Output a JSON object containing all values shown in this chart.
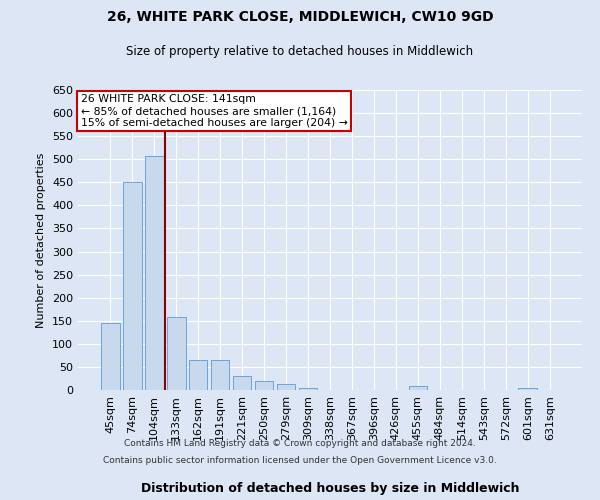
{
  "title": "26, WHITE PARK CLOSE, MIDDLEWICH, CW10 9GD",
  "subtitle": "Size of property relative to detached houses in Middlewich",
  "xlabel": "Distribution of detached houses by size in Middlewich",
  "ylabel": "Number of detached properties",
  "categories": [
    "45sqm",
    "74sqm",
    "104sqm",
    "133sqm",
    "162sqm",
    "191sqm",
    "221sqm",
    "250sqm",
    "279sqm",
    "309sqm",
    "338sqm",
    "367sqm",
    "396sqm",
    "426sqm",
    "455sqm",
    "484sqm",
    "514sqm",
    "543sqm",
    "572sqm",
    "601sqm",
    "631sqm"
  ],
  "values": [
    145,
    450,
    507,
    158,
    65,
    65,
    30,
    20,
    12,
    5,
    0,
    0,
    0,
    0,
    8,
    0,
    0,
    0,
    0,
    5,
    0
  ],
  "bar_color": "#c8d9ee",
  "bar_edge_color": "#5b9bd5",
  "red_line_after_index": 2,
  "highlight_line_color": "#8b0000",
  "annotation_line1": "26 WHITE PARK CLOSE: 141sqm",
  "annotation_line2": "← 85% of detached houses are smaller (1,164)",
  "annotation_line3": "15% of semi-detached houses are larger (204) →",
  "annotation_box_color": "#ffffff",
  "annotation_box_edge": "#cc0000",
  "ylim": [
    0,
    650
  ],
  "yticks": [
    0,
    50,
    100,
    150,
    200,
    250,
    300,
    350,
    400,
    450,
    500,
    550,
    600,
    650
  ],
  "footer_line1": "Contains HM Land Registry data © Crown copyright and database right 2024.",
  "footer_line2": "Contains public sector information licensed under the Open Government Licence v3.0.",
  "background_color": "#dce6f5",
  "plot_bg_color": "#dce6f5",
  "grid_color": "#ffffff"
}
